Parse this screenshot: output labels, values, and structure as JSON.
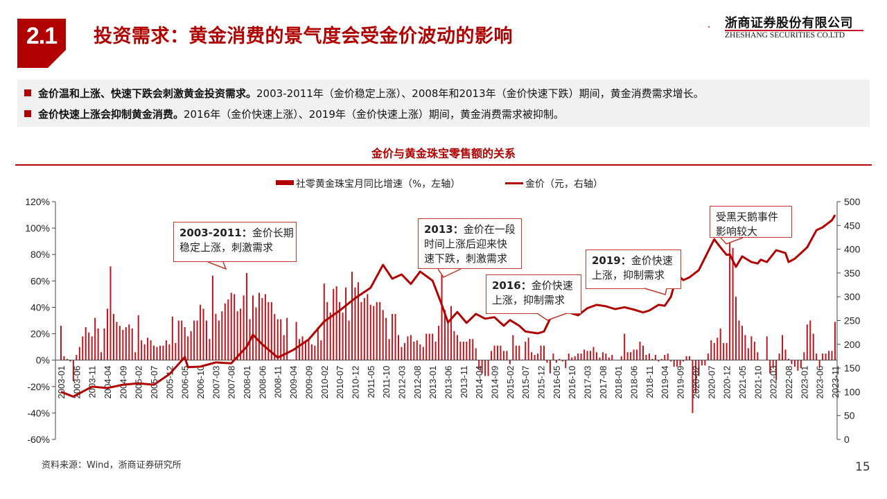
{
  "header": {
    "section_number": "2.1",
    "title": "投资需求：黄金消费的景气度会受金价波动的影响",
    "logo_cn": "浙商证券股份有限公司",
    "logo_en": "ZHESHANG SECURITIES CO.LTD"
  },
  "bullets": [
    {
      "bold": "金价温和上涨、快速下跌会刺激黄金投资需求。",
      "text": "2003-2011年（金价稳定上涨）、2008年和2013年（金价快速下跌）期间，黄金消费需求增长。"
    },
    {
      "bold": "金价快速上涨会抑制黄金消费。",
      "text": "2016年（金价快速上涨）、2019年（金价快速上涨）期间，黄金消费需求被抑制。"
    }
  ],
  "colors": {
    "accent": "#b00000",
    "bar": "#c0141c",
    "line": "#b00000",
    "callout_border": "#c0392b",
    "bullet_bg": "#f1f1f1"
  },
  "footer": {
    "source": "资料来源：Wind，浙商证券研究所",
    "page": "15"
  },
  "callouts": [
    {
      "bold": "2003-2011：",
      "text": "金价长期\n稳定上涨，刺激需求"
    },
    {
      "bold": "2013：",
      "text": "金价在一段\n时间上涨后迎来快\n速下跌，刺激需求"
    },
    {
      "bold": "2016：",
      "text": "金价快速\n上涨，抑制需求"
    },
    {
      "bold": "2019：",
      "text": "金价快速\n上涨，抑制需求"
    },
    {
      "bold": "",
      "text": "受黑天鹅事件\n影响较大"
    }
  ],
  "chart_data": {
    "type": "bar+line",
    "title": "金价与黄金珠宝零售额的关系",
    "legend_placement": "top",
    "grid": false,
    "x_start": "2003-01",
    "x_end": "2023-11",
    "x_tick_labels": [
      "2003-01",
      "2003-06",
      "2003-11",
      "2004-04",
      "2004-09",
      "2005-02",
      "2005-07",
      "2005-12",
      "2006-05",
      "2006-10",
      "2007-03",
      "2007-08",
      "2008-01",
      "2008-06",
      "2008-11",
      "2009-04",
      "2009-09",
      "2010-02",
      "2010-07",
      "2010-12",
      "2011-05",
      "2011-10",
      "2012-03",
      "2012-08",
      "2013-01",
      "2013-06",
      "2013-11",
      "2014-04",
      "2014-09",
      "2015-02",
      "2015-07",
      "2015-12",
      "2016-05",
      "2016-10",
      "2017-03",
      "2017-08",
      "2018-01",
      "2018-06",
      "2018-11",
      "2019-04",
      "2019-09",
      "2020-02",
      "2020-07",
      "2020-12",
      "2021-05",
      "2021-10",
      "2022-03",
      "2022-08",
      "2023-01",
      "2023-06",
      "2023-11"
    ],
    "left_axis": {
      "min": -60,
      "max": 120,
      "step": 20,
      "tick_labels": [
        "-60%",
        "-40%",
        "-20%",
        "0%",
        "20%",
        "40%",
        "60%",
        "80%",
        "100%",
        "120%"
      ]
    },
    "right_axis": {
      "min": 0,
      "max": 500,
      "step": 50,
      "tick_labels": [
        "0",
        "50",
        "100",
        "150",
        "200",
        "250",
        "300",
        "350",
        "400",
        "450",
        "500"
      ]
    },
    "series": [
      {
        "name": "社零黄金珠宝月同比增速（%，左轴）",
        "type": "bar",
        "axis": "left",
        "unit": "%",
        "monthly_values": [
          26,
          3,
          1,
          -1,
          -16,
          4,
          10,
          18,
          25,
          21,
          18,
          32,
          24,
          6,
          24,
          39,
          71,
          35,
          29,
          26,
          23,
          25,
          27,
          24,
          6,
          34,
          15,
          12,
          17,
          15,
          11,
          10,
          11,
          11,
          15,
          12,
          33,
          13,
          30,
          30,
          25,
          18,
          22,
          30,
          30,
          42,
          39,
          30,
          16,
          64,
          35,
          30,
          37,
          43,
          46,
          51,
          50,
          37,
          39,
          49,
          66,
          31,
          49,
          40,
          51,
          47,
          50,
          44,
          44,
          35,
          31,
          31,
          19,
          32,
          0.5,
          0.5,
          29,
          16,
          18,
          14,
          16,
          12,
          11,
          25,
          15,
          58,
          44,
          36,
          54,
          56,
          44,
          36,
          55,
          30,
          67,
          55,
          59,
          44,
          47,
          50,
          42,
          41,
          44,
          44,
          38,
          32,
          16,
          35,
          35,
          19,
          10,
          13,
          18,
          19,
          14,
          15,
          12,
          10,
          20,
          20,
          20,
          14,
          26,
          71,
          38,
          30,
          41,
          22,
          19,
          14,
          14,
          14,
          16,
          16,
          9,
          -7,
          -10,
          -12,
          -12,
          7,
          11,
          11,
          11,
          7,
          7,
          -3,
          19,
          11,
          11,
          0.5,
          14,
          17,
          6,
          4,
          5,
          11,
          11,
          -2,
          -10,
          5,
          -2,
          1,
          -1,
          -6,
          5,
          2,
          3,
          5,
          5,
          8,
          7,
          7,
          10,
          6,
          2,
          6,
          5,
          2,
          4,
          0,
          0,
          3,
          20,
          6,
          6,
          8,
          8,
          14,
          11,
          4,
          5,
          1,
          4,
          -1,
          1,
          4,
          5,
          -1,
          -5,
          -5,
          -4,
          -1,
          3,
          3,
          -40,
          -25,
          -12,
          -4,
          -4,
          5,
          15,
          13,
          17,
          24,
          13,
          13,
          100,
          85,
          48,
          30,
          26,
          19,
          9,
          18,
          14,
          6,
          0,
          0,
          18,
          -10,
          -5,
          -15,
          5,
          19,
          8,
          1,
          -3,
          -5,
          -8,
          -6,
          6,
          27,
          30,
          20,
          5,
          -5,
          5,
          5,
          7,
          7,
          29
        ]
      },
      {
        "name": "金价（元，右轴）",
        "type": "line",
        "axis": "right",
        "unit": "元",
        "points": [
          [
            "2003-01",
            100
          ],
          [
            "2003-05",
            90
          ],
          [
            "2003-11",
            111
          ],
          [
            "2004-04",
            108
          ],
          [
            "2004-09",
            115
          ],
          [
            "2005-02",
            118
          ],
          [
            "2005-07",
            115
          ],
          [
            "2005-12",
            137
          ],
          [
            "2006-05",
            173
          ],
          [
            "2006-06",
            152
          ],
          [
            "2006-10",
            153
          ],
          [
            "2007-03",
            162
          ],
          [
            "2007-08",
            160
          ],
          [
            "2008-01",
            195
          ],
          [
            "2008-03",
            220
          ],
          [
            "2008-06",
            200
          ],
          [
            "2008-11",
            172
          ],
          [
            "2009-04",
            188
          ],
          [
            "2009-09",
            210
          ],
          [
            "2010-02",
            248
          ],
          [
            "2010-07",
            271
          ],
          [
            "2010-12",
            297
          ],
          [
            "2011-05",
            319
          ],
          [
            "2011-09",
            367
          ],
          [
            "2011-12",
            338
          ],
          [
            "2012-03",
            347
          ],
          [
            "2012-06",
            327
          ],
          [
            "2012-09",
            353
          ],
          [
            "2013-01",
            334
          ],
          [
            "2013-04",
            283
          ],
          [
            "2013-06",
            246
          ],
          [
            "2013-09",
            268
          ],
          [
            "2013-12",
            245
          ],
          [
            "2014-03",
            264
          ],
          [
            "2014-06",
            254
          ],
          [
            "2014-09",
            257
          ],
          [
            "2014-12",
            239
          ],
          [
            "2015-02",
            251
          ],
          [
            "2015-05",
            239
          ],
          [
            "2015-07",
            227
          ],
          [
            "2015-11",
            223
          ],
          [
            "2016-01",
            227
          ],
          [
            "2016-03",
            254
          ],
          [
            "2016-07",
            287
          ],
          [
            "2016-10",
            265
          ],
          [
            "2016-12",
            261
          ],
          [
            "2017-03",
            276
          ],
          [
            "2017-06",
            283
          ],
          [
            "2017-09",
            280
          ],
          [
            "2017-12",
            274
          ],
          [
            "2018-03",
            278
          ],
          [
            "2018-06",
            273
          ],
          [
            "2018-09",
            267
          ],
          [
            "2018-11",
            271
          ],
          [
            "2019-02",
            283
          ],
          [
            "2019-04",
            281
          ],
          [
            "2019-06",
            300
          ],
          [
            "2019-08",
            347
          ],
          [
            "2019-10",
            335
          ],
          [
            "2019-12",
            341
          ],
          [
            "2020-03",
            356
          ],
          [
            "2020-05",
            382
          ],
          [
            "2020-08",
            421
          ],
          [
            "2020-10",
            404
          ],
          [
            "2020-12",
            388
          ],
          [
            "2021-01",
            389
          ],
          [
            "2021-03",
            363
          ],
          [
            "2021-05",
            385
          ],
          [
            "2021-08",
            373
          ],
          [
            "2021-10",
            370
          ],
          [
            "2021-11",
            378
          ],
          [
            "2022-01",
            373
          ],
          [
            "2022-04",
            398
          ],
          [
            "2022-07",
            392
          ],
          [
            "2022-08",
            373
          ],
          [
            "2022-10",
            380
          ],
          [
            "2022-12",
            392
          ],
          [
            "2023-02",
            404
          ],
          [
            "2023-05",
            440
          ],
          [
            "2023-07",
            446
          ],
          [
            "2023-10",
            461
          ],
          [
            "2023-11",
            472
          ]
        ]
      }
    ]
  }
}
